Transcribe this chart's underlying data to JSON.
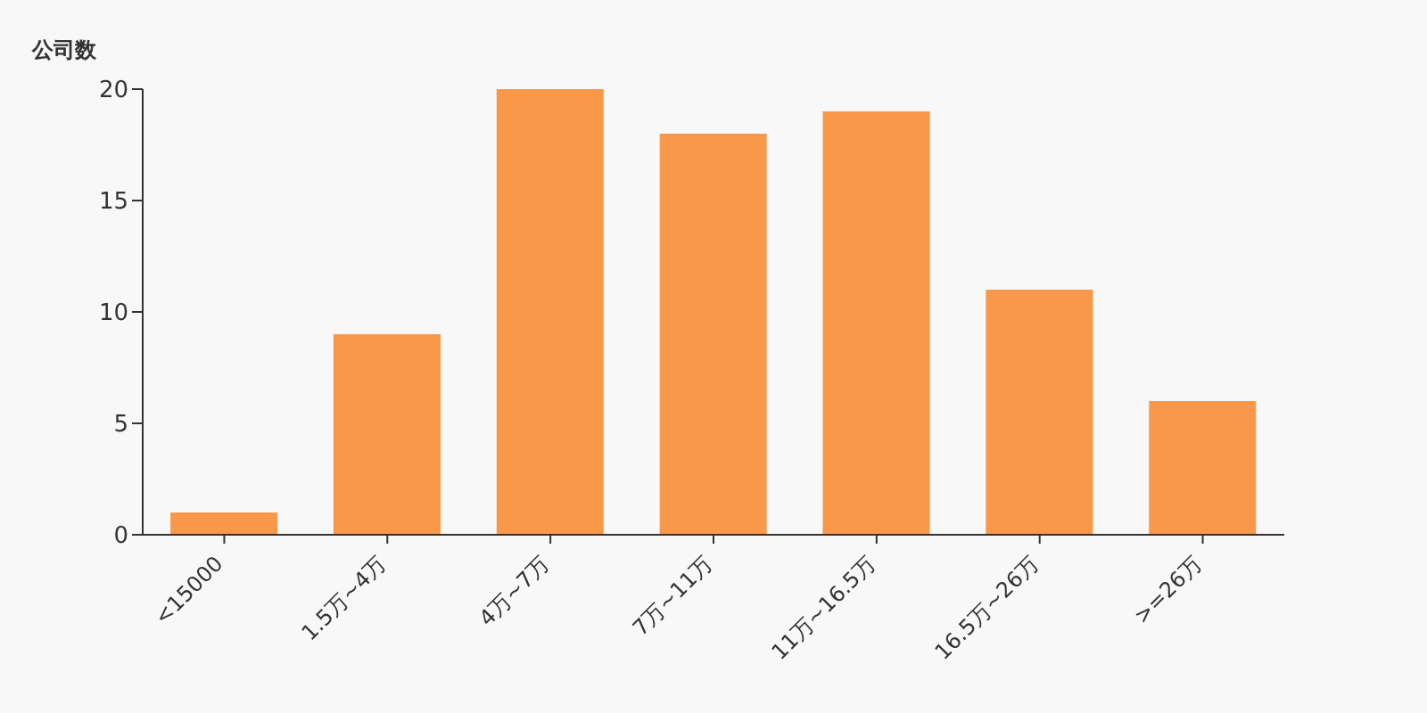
{
  "chart_data": {
    "type": "bar",
    "ylabel": "公司数",
    "categories": [
      "<15000",
      "1.5万~4万",
      "4万~7万",
      "7万~11万",
      "11万~16.5万",
      "16.5万~26万",
      ">=26万"
    ],
    "values": [
      1,
      9,
      20,
      18,
      19,
      11,
      6
    ],
    "color": "#f89848",
    "ylim": [
      0,
      20
    ],
    "yticks": [
      0,
      5,
      10,
      15,
      20
    ],
    "grid": false,
    "legend": false
  }
}
